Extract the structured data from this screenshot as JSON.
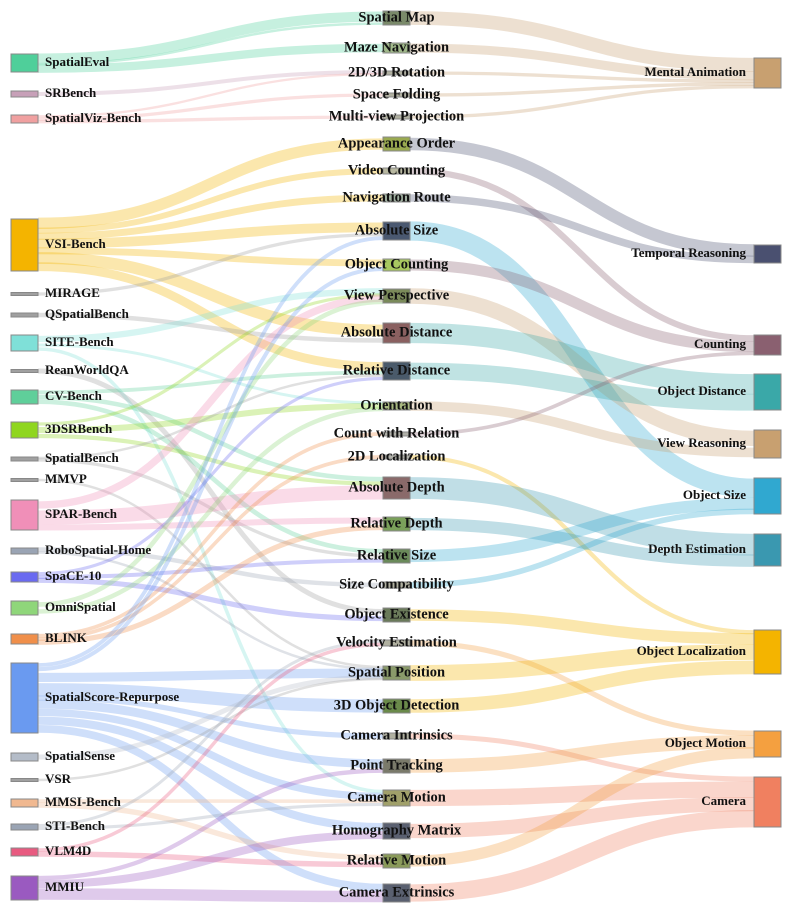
{
  "benchmarks": [
    {
      "label": "SpatialEval",
      "color": "#4fcf9a"
    },
    {
      "label": "SRBench",
      "color": "#c7a0b8"
    },
    {
      "label": "SpatialViz-Bench",
      "color": "#f0a0a0"
    },
    {
      "label": "VSI-Bench",
      "color": "#f4b400"
    },
    {
      "label": "MIRAGE",
      "color": "#a0a0a0"
    },
    {
      "label": "QSpatialBench",
      "color": "#a0a0a0"
    },
    {
      "label": "SITE-Bench",
      "color": "#7fe0d8"
    },
    {
      "label": "ReanWorldQA",
      "color": "#a0a0a0"
    },
    {
      "label": "CV-Bench",
      "color": "#5fcf9a"
    },
    {
      "label": "3DSRBench",
      "color": "#8fd61f"
    },
    {
      "label": "SpatialBench",
      "color": "#a0a0a0"
    },
    {
      "label": "MMVP",
      "color": "#a0a0a0"
    },
    {
      "label": "SPAR-Bench",
      "color": "#f08fb8"
    },
    {
      "label": "RoboSpatial-Home",
      "color": "#9aa4b4"
    },
    {
      "label": "SpaCE-10",
      "color": "#6a6af0"
    },
    {
      "label": "OmniSpatial",
      "color": "#8fd67a"
    },
    {
      "label": "BLINK",
      "color": "#f08f4a"
    },
    {
      "label": "SpatialScore-Repurpose",
      "color": "#6a9af0"
    },
    {
      "label": "SpatialSense",
      "color": "#b4bcc8"
    },
    {
      "label": "VSR",
      "color": "#a0a0a0"
    },
    {
      "label": "MMSI-Bench",
      "color": "#f0b890"
    },
    {
      "label": "STI-Bench",
      "color": "#9aa4b4"
    },
    {
      "label": "VLM4D",
      "color": "#e85a80"
    },
    {
      "label": "MMIU",
      "color": "#9a5ac0"
    }
  ],
  "tasks": [
    {
      "label": "Spatial Map",
      "color": "#7a8a6a"
    },
    {
      "label": "Maze Navigation",
      "color": "#a0b88a"
    },
    {
      "label": "2D/3D Rotation",
      "color": "#b0b0a0"
    },
    {
      "label": "Space Folding",
      "color": "#b0b0a0"
    },
    {
      "label": "Multi-view Projection",
      "color": "#b0b0a0"
    },
    {
      "label": "Appearance Order",
      "color": "#9aaa50"
    },
    {
      "label": "Video Counting",
      "color": "#b8b8a0"
    },
    {
      "label": "Navigation Route",
      "color": "#a0b0a0"
    },
    {
      "label": "Absolute Size",
      "color": "#4a5870"
    },
    {
      "label": "Object Counting",
      "color": "#a8c860"
    },
    {
      "label": "View Perspective",
      "color": "#7a8a5a"
    },
    {
      "label": "Absolute Distance",
      "color": "#8a6060"
    },
    {
      "label": "Relative Distance",
      "color": "#4a5a6a"
    },
    {
      "label": "Orientation",
      "color": "#a8b880"
    },
    {
      "label": "Count with Relation",
      "color": "#b0b0a8"
    },
    {
      "label": "2D Localization",
      "color": "#b0b0a8"
    },
    {
      "label": "Absolute Depth",
      "color": "#8a6a6a"
    },
    {
      "label": "Relative Depth",
      "color": "#7aa05a"
    },
    {
      "label": "Relative Size",
      "color": "#6a8a5a"
    },
    {
      "label": "Size Compatibility",
      "color": "#b0b0a0"
    },
    {
      "label": "Object Existence",
      "color": "#6a7a5a"
    },
    {
      "label": "Velocity Estimation",
      "color": "#b0b0a0"
    },
    {
      "label": "Spatial Position",
      "color": "#8a9a6a"
    },
    {
      "label": "3D Object Detection",
      "color": "#6a8a4a"
    },
    {
      "label": "Camera Intrinsics",
      "color": "#b0b0a0"
    },
    {
      "label": "Point Tracking",
      "color": "#7a7a6a"
    },
    {
      "label": "Camera Motion",
      "color": "#a0a06a"
    },
    {
      "label": "Homography Matrix",
      "color": "#5a6070"
    },
    {
      "label": "Relative Motion",
      "color": "#8a9a5a"
    },
    {
      "label": "Camera Extrinsics",
      "color": "#5a6070"
    }
  ],
  "categories": [
    {
      "label": "Mental Animation",
      "color": "#c8a070"
    },
    {
      "label": "Temporal Reasoning",
      "color": "#4a5070"
    },
    {
      "label": "Counting",
      "color": "#8a6070"
    },
    {
      "label": "Object Distance",
      "color": "#3aa8a8"
    },
    {
      "label": "View Reasoning",
      "color": "#c8a070"
    },
    {
      "label": "Object Size",
      "color": "#30a8d0"
    },
    {
      "label": "Depth Estimation",
      "color": "#3a98b0"
    },
    {
      "label": "Object Localization",
      "color": "#f4b400"
    },
    {
      "label": "Object Motion",
      "color": "#f4a040"
    },
    {
      "label": "Camera",
      "color": "#f08060"
    }
  ],
  "flows_in": [
    [
      0,
      0,
      4
    ],
    [
      0,
      1,
      3
    ],
    [
      0,
      0,
      1
    ],
    [
      1,
      2,
      1
    ],
    [
      2,
      2,
      1
    ],
    [
      2,
      3,
      1
    ],
    [
      2,
      4,
      1
    ],
    [
      3,
      5,
      3
    ],
    [
      3,
      6,
      2
    ],
    [
      3,
      7,
      2
    ],
    [
      3,
      8,
      3
    ],
    [
      3,
      9,
      2
    ],
    [
      3,
      11,
      3
    ],
    [
      3,
      12,
      3
    ],
    [
      4,
      8,
      1
    ],
    [
      5,
      11,
      1
    ],
    [
      6,
      10,
      2
    ],
    [
      6,
      13,
      1
    ],
    [
      6,
      26,
      1
    ],
    [
      7,
      20,
      1
    ],
    [
      8,
      12,
      1
    ],
    [
      8,
      16,
      1
    ],
    [
      8,
      18,
      1
    ],
    [
      9,
      13,
      2
    ],
    [
      9,
      10,
      1
    ],
    [
      9,
      16,
      1
    ],
    [
      10,
      12,
      1
    ],
    [
      10,
      18,
      1
    ],
    [
      11,
      22,
      1
    ],
    [
      12,
      16,
      3
    ],
    [
      12,
      10,
      2
    ],
    [
      12,
      17,
      1
    ],
    [
      13,
      22,
      1
    ],
    [
      13,
      19,
      1
    ],
    [
      14,
      12,
      1
    ],
    [
      14,
      20,
      1
    ],
    [
      14,
      18,
      1
    ],
    [
      15,
      13,
      1
    ],
    [
      15,
      10,
      1
    ],
    [
      16,
      17,
      1
    ],
    [
      16,
      15,
      1
    ],
    [
      16,
      14,
      1
    ],
    [
      17,
      22,
      3
    ],
    [
      17,
      23,
      3
    ],
    [
      17,
      25,
      2
    ],
    [
      17,
      26,
      2
    ],
    [
      17,
      27,
      2
    ],
    [
      17,
      24,
      1
    ],
    [
      17,
      29,
      2
    ],
    [
      17,
      9,
      1
    ],
    [
      17,
      8,
      1
    ],
    [
      18,
      22,
      1
    ],
    [
      19,
      22,
      1
    ],
    [
      20,
      26,
      1
    ],
    [
      20,
      28,
      1
    ],
    [
      21,
      21,
      1
    ],
    [
      21,
      26,
      1
    ],
    [
      22,
      28,
      1
    ],
    [
      22,
      21,
      1
    ],
    [
      23,
      29,
      3
    ],
    [
      23,
      27,
      2
    ],
    [
      23,
      25,
      1
    ]
  ],
  "flows_out": [
    [
      0,
      0,
      5
    ],
    [
      1,
      0,
      3
    ],
    [
      2,
      0,
      1
    ],
    [
      3,
      0,
      1
    ],
    [
      4,
      0,
      1
    ],
    [
      5,
      1,
      3
    ],
    [
      6,
      2,
      2
    ],
    [
      7,
      1,
      2
    ],
    [
      8,
      5,
      4
    ],
    [
      9,
      2,
      3
    ],
    [
      10,
      4,
      3
    ],
    [
      11,
      3,
      4
    ],
    [
      12,
      3,
      3
    ],
    [
      13,
      4,
      2
    ],
    [
      14,
      2,
      1
    ],
    [
      15,
      7,
      1
    ],
    [
      16,
      6,
      4
    ],
    [
      17,
      6,
      2
    ],
    [
      18,
      5,
      2
    ],
    [
      19,
      5,
      1
    ],
    [
      20,
      7,
      2
    ],
    [
      21,
      8,
      1
    ],
    [
      22,
      7,
      4
    ],
    [
      23,
      7,
      3
    ],
    [
      24,
      9,
      1
    ],
    [
      25,
      8,
      3
    ],
    [
      26,
      9,
      4
    ],
    [
      27,
      9,
      3
    ],
    [
      28,
      8,
      2
    ],
    [
      29,
      9,
      4
    ]
  ]
}
